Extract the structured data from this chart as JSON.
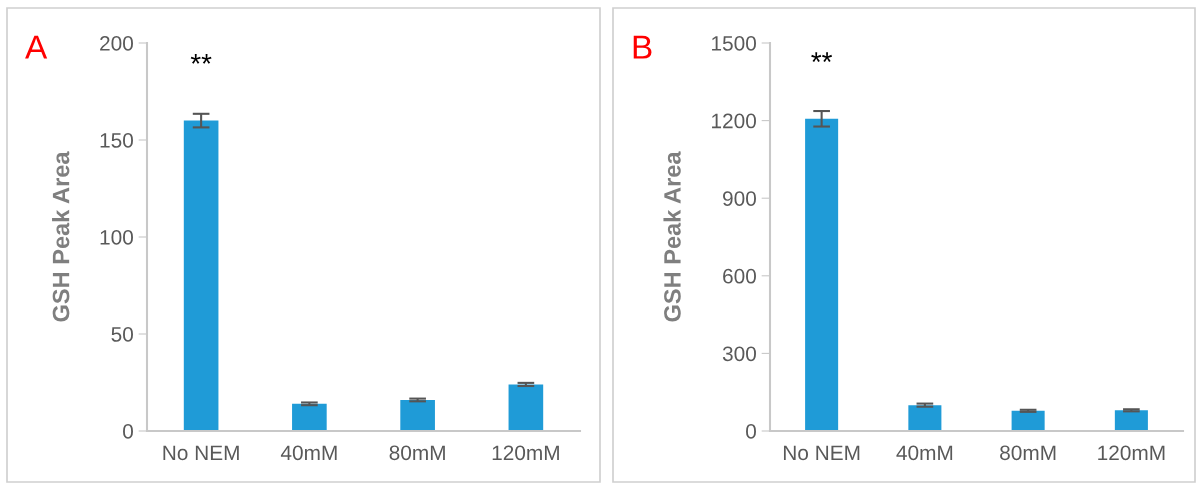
{
  "chart_data": [
    {
      "type": "bar",
      "ylabel": "GSH Peak Area",
      "categories": [
        "No NEM",
        "40mM",
        "80mM",
        "120mM"
      ],
      "values": [
        160,
        14,
        16,
        24
      ],
      "errors": [
        3.5,
        0.7,
        0.7,
        0.8
      ],
      "color": "#1f9bd7",
      "ylim": [
        0,
        200
      ],
      "yticks": [
        0,
        50,
        100,
        150,
        200
      ],
      "grid": false,
      "annotations": [
        "A",
        "**"
      ]
    },
    {
      "type": "bar",
      "ylabel": "GSH Peak Area",
      "categories": [
        "No NEM",
        "40mM",
        "80mM",
        "120mM"
      ],
      "values": [
        1207,
        100,
        78,
        80
      ],
      "errors": [
        30,
        6,
        4,
        4
      ],
      "color": "#1f9bd7",
      "ylim": [
        0,
        1500
      ],
      "yticks": [
        0,
        300,
        600,
        900,
        1200,
        1500
      ],
      "grid": false,
      "annotations": [
        "B",
        "**"
      ]
    }
  ]
}
